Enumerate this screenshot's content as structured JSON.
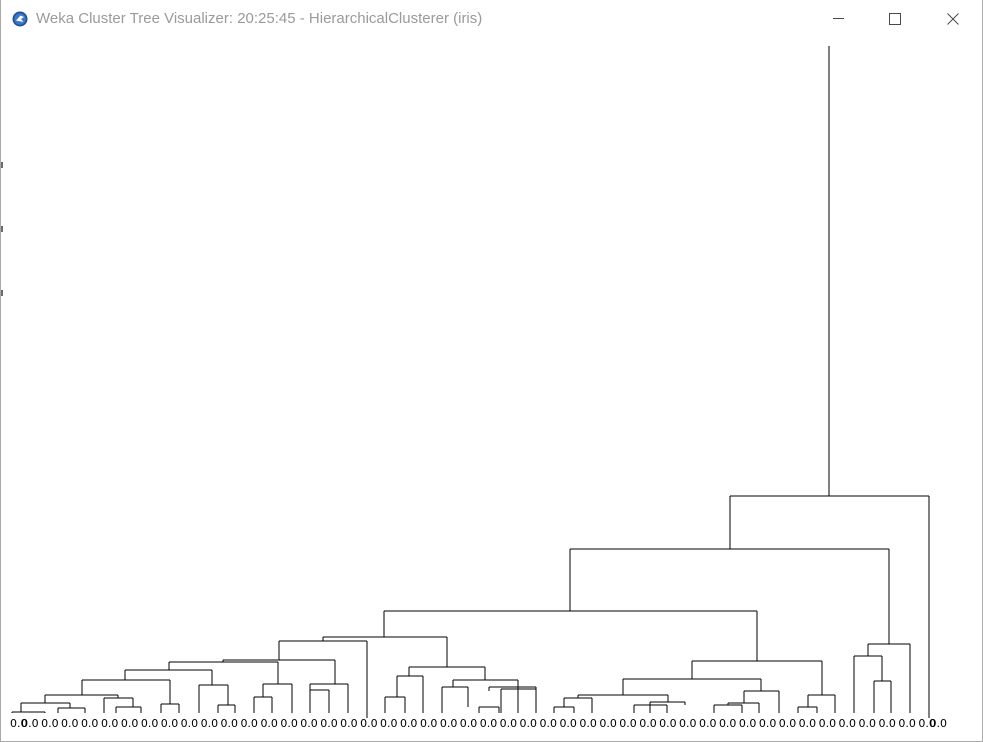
{
  "window": {
    "title": "Weka Cluster Tree Visualizer: 20:25:45 - HierarchicalClusterer (iris)",
    "icon": "weka-bird-icon",
    "controls": {
      "minimize_icon": "minimize-icon",
      "maximize_icon": "maximize-icon",
      "close_icon": "close-icon"
    }
  },
  "dendrogram": {
    "leaf_label": "0.0",
    "leaf_count": 48,
    "line_color": "#000000"
  }
}
